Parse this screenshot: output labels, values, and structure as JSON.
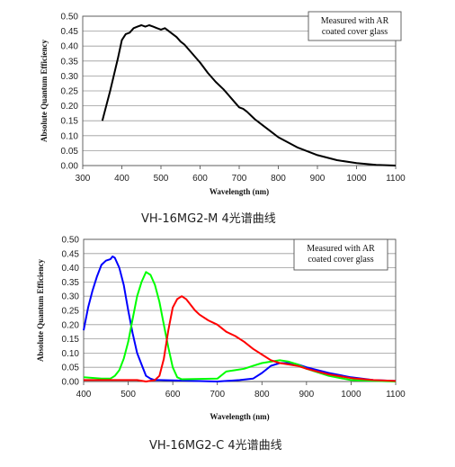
{
  "chart_data": [
    {
      "type": "line",
      "caption": "VH-16MG2-M 4光谱曲线",
      "xlabel": "Wavelength (nm)",
      "ylabel": "Absolute Quantum Efficiency",
      "annotation": [
        "Measured with AR",
        "coated cover glass"
      ],
      "xlim": [
        300,
        1100
      ],
      "ylim": [
        0,
        0.5
      ],
      "xticks": [
        300,
        400,
        500,
        600,
        700,
        800,
        900,
        1000,
        1100
      ],
      "yticks": [
        "0.00",
        "0.05",
        "0.10",
        "0.15",
        "0.20",
        "0.25",
        "0.30",
        "0.35",
        "0.40",
        "0.45",
        "0.50"
      ],
      "grid": "horizontal",
      "series": [
        {
          "color": "#000000",
          "x": [
            350,
            370,
            390,
            400,
            410,
            420,
            430,
            440,
            450,
            460,
            470,
            480,
            490,
            500,
            510,
            520,
            530,
            540,
            550,
            560,
            570,
            580,
            590,
            600,
            620,
            640,
            660,
            680,
            700,
            710,
            720,
            740,
            760,
            780,
            800,
            850,
            900,
            950,
            1000,
            1050,
            1100
          ],
          "y": [
            0.15,
            0.25,
            0.36,
            0.42,
            0.44,
            0.445,
            0.46,
            0.465,
            0.47,
            0.465,
            0.47,
            0.465,
            0.46,
            0.455,
            0.46,
            0.45,
            0.44,
            0.43,
            0.415,
            0.405,
            0.39,
            0.375,
            0.36,
            0.345,
            0.31,
            0.28,
            0.255,
            0.225,
            0.195,
            0.19,
            0.18,
            0.155,
            0.135,
            0.115,
            0.095,
            0.06,
            0.035,
            0.018,
            0.008,
            0.002,
            0.0
          ]
        }
      ]
    },
    {
      "type": "line",
      "caption": "VH-16MG2-C 4光谱曲线",
      "xlabel": "Wavelength (nm)",
      "ylabel": "Absolute Quantum Efficiency",
      "annotation": [
        "Measured with AR",
        "coated cover glass"
      ],
      "xlim": [
        400,
        1100
      ],
      "ylim": [
        0,
        0.5
      ],
      "xticks": [
        400,
        500,
        600,
        700,
        800,
        900,
        1000,
        1100
      ],
      "yticks": [
        "0.00",
        "0.05",
        "0.10",
        "0.15",
        "0.20",
        "0.25",
        "0.30",
        "0.35",
        "0.40",
        "0.45",
        "0.50"
      ],
      "grid": "horizontal",
      "series": [
        {
          "color": "#0000ff",
          "x": [
            400,
            410,
            420,
            430,
            440,
            450,
            460,
            465,
            470,
            480,
            490,
            500,
            510,
            520,
            530,
            540,
            550,
            560,
            570,
            700,
            750,
            780,
            800,
            820,
            840,
            860,
            880,
            900,
            950,
            1000,
            1050,
            1100
          ],
          "y": [
            0.18,
            0.26,
            0.32,
            0.37,
            0.41,
            0.425,
            0.43,
            0.44,
            0.435,
            0.4,
            0.34,
            0.25,
            0.17,
            0.1,
            0.06,
            0.02,
            0.01,
            0.005,
            0.005,
            0.0,
            0.005,
            0.01,
            0.03,
            0.055,
            0.065,
            0.065,
            0.06,
            0.05,
            0.03,
            0.015,
            0.005,
            0.002
          ]
        },
        {
          "color": "#00ff00",
          "x": [
            400,
            440,
            460,
            470,
            480,
            490,
            500,
            510,
            520,
            530,
            540,
            550,
            560,
            570,
            580,
            590,
            600,
            610,
            620,
            700,
            720,
            740,
            760,
            780,
            800,
            820,
            840,
            860,
            880,
            900,
            950,
            1000,
            1100
          ],
          "y": [
            0.015,
            0.01,
            0.01,
            0.02,
            0.04,
            0.08,
            0.14,
            0.22,
            0.3,
            0.35,
            0.385,
            0.375,
            0.34,
            0.28,
            0.2,
            0.12,
            0.05,
            0.015,
            0.008,
            0.01,
            0.035,
            0.04,
            0.045,
            0.055,
            0.065,
            0.07,
            0.075,
            0.07,
            0.06,
            0.045,
            0.02,
            0.005,
            0.0
          ]
        },
        {
          "color": "#ff0000",
          "x": [
            400,
            480,
            500,
            520,
            540,
            560,
            570,
            580,
            590,
            600,
            610,
            620,
            630,
            640,
            650,
            660,
            680,
            700,
            720,
            740,
            760,
            780,
            800,
            820,
            840,
            860,
            880,
            900,
            950,
            1000,
            1050,
            1100
          ],
          "y": [
            0.005,
            0.005,
            0.005,
            0.005,
            0.0,
            0.005,
            0.02,
            0.08,
            0.18,
            0.26,
            0.29,
            0.3,
            0.29,
            0.27,
            0.25,
            0.235,
            0.215,
            0.2,
            0.175,
            0.16,
            0.14,
            0.115,
            0.095,
            0.075,
            0.065,
            0.06,
            0.055,
            0.045,
            0.025,
            0.012,
            0.005,
            0.002
          ]
        }
      ]
    }
  ]
}
